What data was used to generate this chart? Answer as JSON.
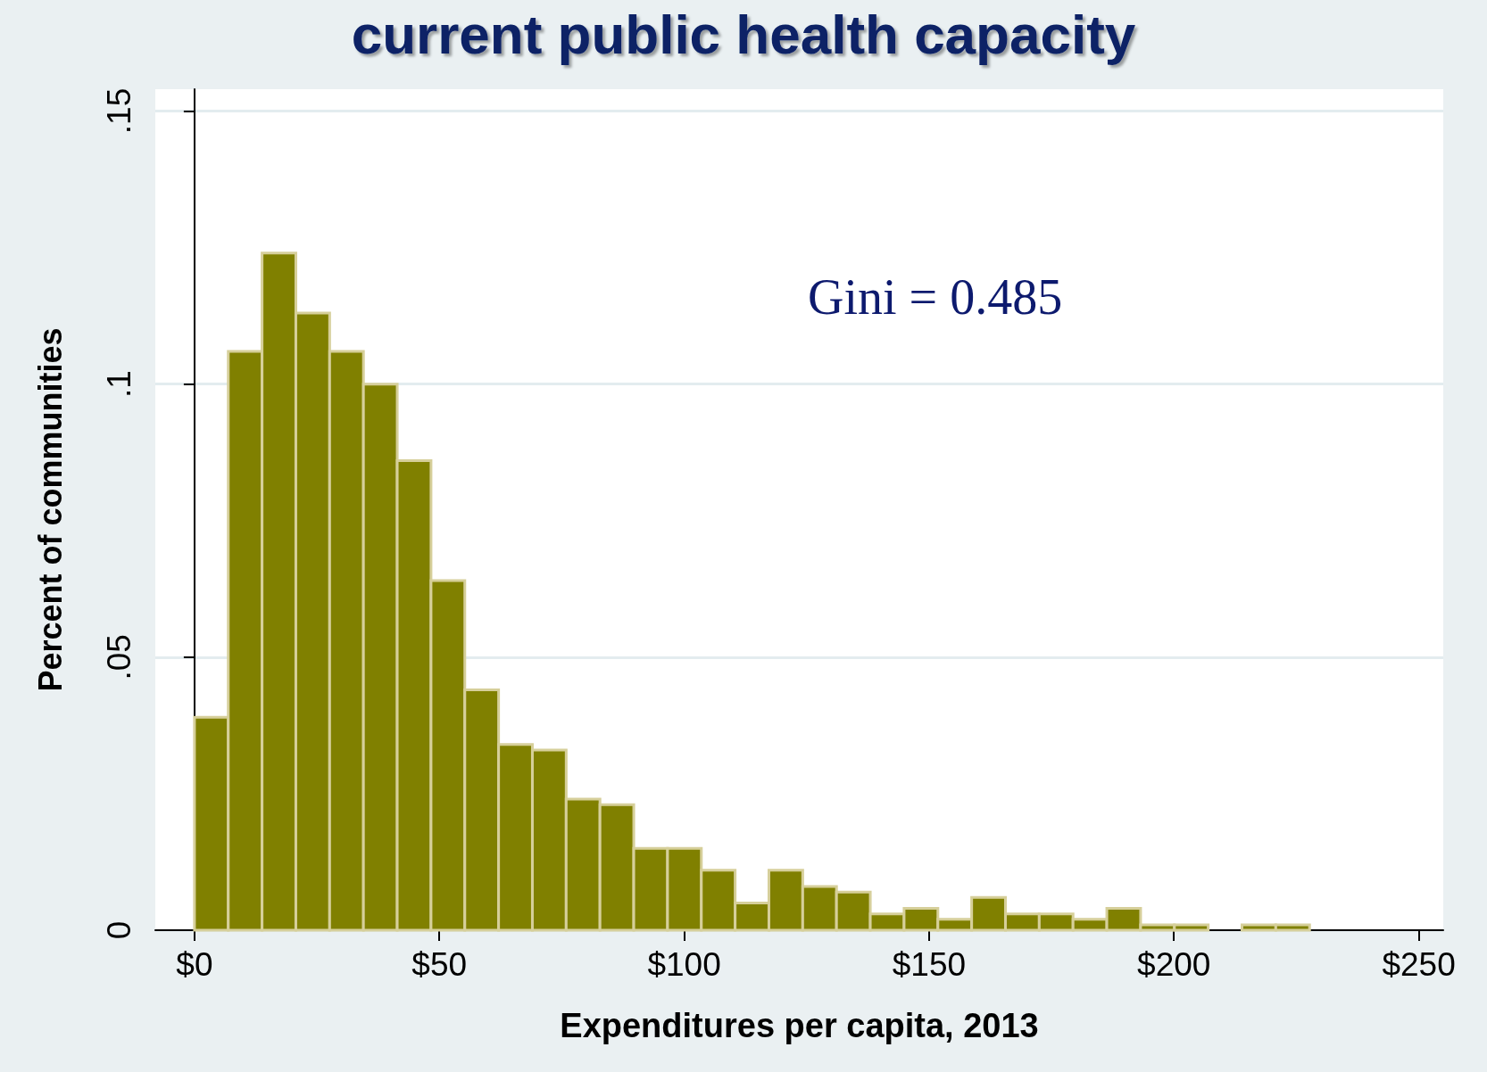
{
  "chart_data": {
    "type": "histogram",
    "title": "current public health capacity",
    "xlabel": "Expenditures per capita, 2013",
    "ylabel": "Percent of communities",
    "annotations": [
      "Gini = 0.485"
    ],
    "bins": [
      0,
      6.9,
      13.8,
      20.7,
      27.6,
      34.5,
      41.4,
      48.3,
      55.2,
      62.1,
      69,
      75.9,
      82.8,
      89.7,
      96.6,
      103.5,
      110.4,
      117.3,
      124.2,
      131.1,
      138,
      144.9,
      151.8,
      158.7,
      165.6,
      172.5,
      179.4,
      186.3,
      193.2,
      200.1,
      207,
      213.9,
      220.8,
      227.7
    ],
    "values": [
      0.039,
      0.106,
      0.124,
      0.113,
      0.106,
      0.1,
      0.086,
      0.064,
      0.044,
      0.034,
      0.033,
      0.024,
      0.023,
      0.015,
      0.015,
      0.011,
      0.005,
      0.011,
      0.008,
      0.007,
      0.003,
      0.004,
      0.002,
      0.006,
      0.003,
      0.003,
      0.002,
      0.004,
      0.001,
      0.001,
      0,
      0.001,
      0.001
    ],
    "color": "#808000",
    "xlim": [
      -8,
      255
    ],
    "ylim": [
      0,
      0.154
    ],
    "xticks": [
      {
        "value": 0,
        "label": "$0"
      },
      {
        "value": 50,
        "label": "$50"
      },
      {
        "value": 100,
        "label": "$100"
      },
      {
        "value": 150,
        "label": "$150"
      },
      {
        "value": 200,
        "label": "$200"
      },
      {
        "value": 250,
        "label": "$250"
      }
    ],
    "yticks": [
      0,
      {
        "value": 0.05,
        "label": ".05"
      },
      {
        "value": 0.1,
        "label": ".1"
      },
      {
        "value": 0.15,
        "label": ".15"
      }
    ],
    "grid": "y",
    "legend": false
  }
}
